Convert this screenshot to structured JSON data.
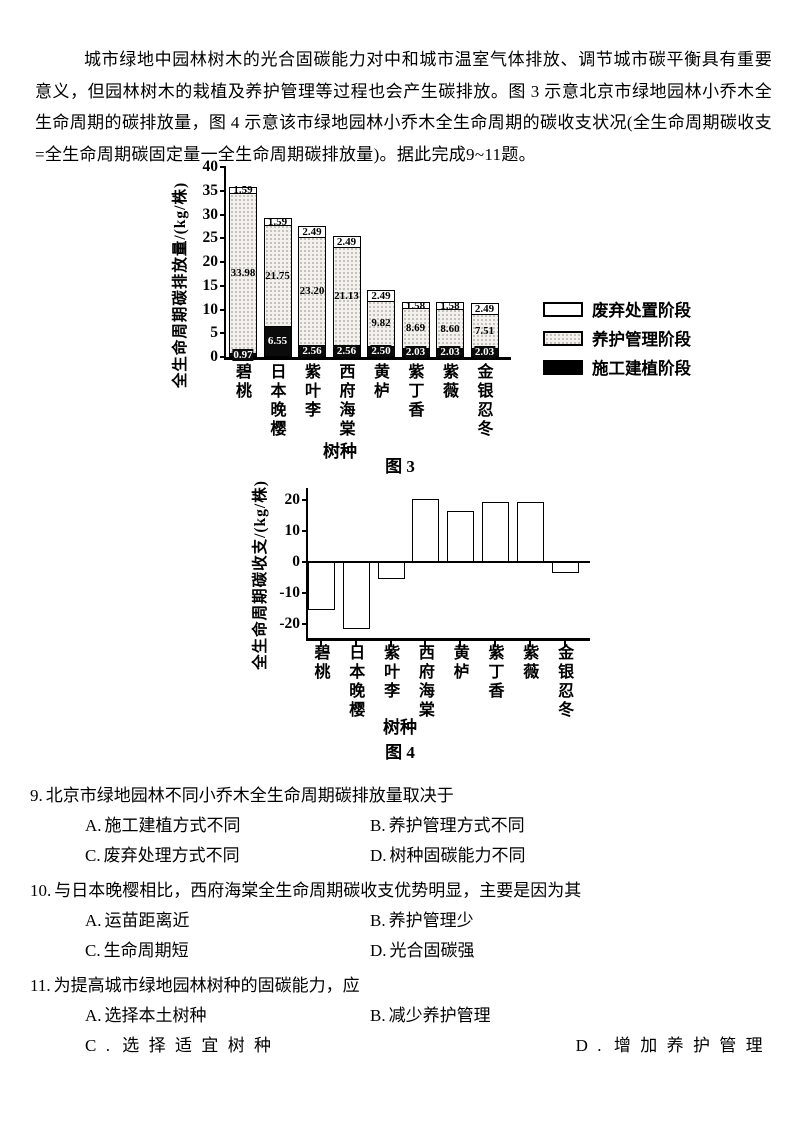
{
  "page": {
    "background": "#ffffff",
    "text_color": "#000000"
  },
  "intro": "城市绿地中园林树木的光合固碳能力对中和城市温室气体排放、调节城市碳平衡具有重要意义，但园林树木的栽植及养护管理等过程也会产生碳排放。图 3 示意北京市绿地园林小乔木全生命周期的碳排放量，图 4 示意该市绿地园林小乔木全生命周期的碳收支状况(全生命周期碳收支=全生命周期碳固定量一全生命周期碳排放量)。据此完成9~11题。",
  "chart_data": [
    {
      "type": "bar",
      "stacked": true,
      "figure_caption": "图 3",
      "ylabel": "全生命周期碳排放量/(kg/株)",
      "xlabel": "树种",
      "ylim": [
        0,
        40
      ],
      "yticks": [
        0,
        5,
        10,
        15,
        20,
        25,
        30,
        35,
        40
      ],
      "grid": false,
      "legend_position": "right",
      "categories": [
        "碧桃",
        "日本晚樱",
        "紫叶李",
        "西府海棠",
        "黄栌",
        "紫丁香",
        "紫薇",
        "金银忍冬"
      ],
      "series": [
        {
          "name": "施工建植阶段",
          "swatch": "black",
          "values": [
            0.97,
            6.55,
            2.56,
            2.56,
            2.5,
            2.03,
            2.03,
            2.03
          ]
        },
        {
          "name": "养护管理阶段",
          "swatch": "stipple",
          "values": [
            33.98,
            21.75,
            23.2,
            21.13,
            9.82,
            8.69,
            8.6,
            7.51
          ]
        },
        {
          "name": "废弃处置阶段",
          "swatch": "white",
          "values": [
            1.59,
            1.59,
            2.49,
            2.49,
            2.49,
            1.58,
            1.58,
            2.49
          ]
        }
      ],
      "legend_order": [
        "废弃处置阶段",
        "养护管理阶段",
        "施工建植阶段"
      ]
    },
    {
      "type": "bar",
      "figure_caption": "图 4",
      "ylabel": "全生命周期碳收支/(kg/株)",
      "xlabel": "树种",
      "ylim": [
        -24.5,
        24
      ],
      "yticks": [
        20,
        10,
        0,
        -10,
        -20
      ],
      "grid": false,
      "categories": [
        "碧桃",
        "日本晚樱",
        "紫叶李",
        "西府海棠",
        "黄栌",
        "紫丁香",
        "紫薇",
        "金银忍冬"
      ],
      "values": [
        -15.5,
        -21.5,
        -5.5,
        20.5,
        16.5,
        19.5,
        19.5,
        -3.5
      ]
    }
  ],
  "questions": [
    {
      "number": "9.",
      "stem": "北京市绿地园林不同小乔木全生命周期碳排放量取决于",
      "options": [
        {
          "label": "A.",
          "text": "施工建植方式不同"
        },
        {
          "label": "B.",
          "text": "养护管理方式不同"
        },
        {
          "label": "C.",
          "text": "废弃处理方式不同"
        },
        {
          "label": "D.",
          "text": "树种固碳能力不同"
        }
      ]
    },
    {
      "number": "10.",
      "stem": "与日本晚樱相比，西府海棠全生命周期碳收支优势明显，主要是因为其",
      "options": [
        {
          "label": "A.",
          "text": "运苗距离近"
        },
        {
          "label": "B.",
          "text": "养护管理少"
        },
        {
          "label": "C.",
          "text": "生命周期短"
        },
        {
          "label": "D.",
          "text": "光合固碳强"
        }
      ]
    },
    {
      "number": "11.",
      "stem": "为提高城市绿地园林树种的固碳能力，应",
      "options": [
        {
          "label": "A.",
          "text": "选择本土树种"
        },
        {
          "label": "B.",
          "text": "减少养护管理"
        },
        {
          "label": "C.",
          "text": "选择适宜树种",
          "spaced": true
        },
        {
          "label": "D.",
          "text": "增加养护管理",
          "spaced": true,
          "align_right": true
        }
      ]
    }
  ]
}
